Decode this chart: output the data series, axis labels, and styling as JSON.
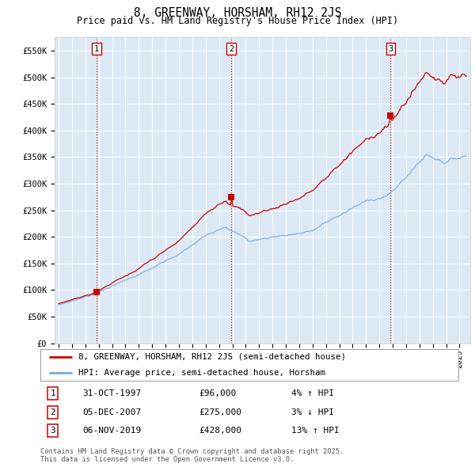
{
  "title": "8, GREENWAY, HORSHAM, RH12 2JS",
  "subtitle": "Price paid vs. HM Land Registry's House Price Index (HPI)",
  "plot_bg_color": "#dce9f5",
  "ylim": [
    0,
    575000
  ],
  "yticks": [
    0,
    50000,
    100000,
    150000,
    200000,
    250000,
    300000,
    350000,
    400000,
    450000,
    500000,
    550000
  ],
  "ytick_labels": [
    "£0",
    "£50K",
    "£100K",
    "£150K",
    "£200K",
    "£250K",
    "£300K",
    "£350K",
    "£400K",
    "£450K",
    "£500K",
    "£550K"
  ],
  "sale1_year": 1997.83,
  "sale1_price": 96000,
  "sale2_year": 2007.92,
  "sale2_price": 275000,
  "sale3_year": 2019.84,
  "sale3_price": 428000,
  "red_color": "#cc0000",
  "blue_color": "#7aabe0",
  "legend_line1": "8, GREENWAY, HORSHAM, RH12 2JS (semi-detached house)",
  "legend_line2": "HPI: Average price, semi-detached house, Horsham",
  "table_entries": [
    {
      "num": "1",
      "date": "31-OCT-1997",
      "price": "£96,000",
      "hpi": "4% ↑ HPI"
    },
    {
      "num": "2",
      "date": "05-DEC-2007",
      "price": "£275,000",
      "hpi": "3% ↓ HPI"
    },
    {
      "num": "3",
      "date": "06-NOV-2019",
      "price": "£428,000",
      "hpi": "13% ↑ HPI"
    }
  ],
  "footer": "Contains HM Land Registry data © Crown copyright and database right 2025.\nThis data is licensed under the Open Government Licence v3.0."
}
